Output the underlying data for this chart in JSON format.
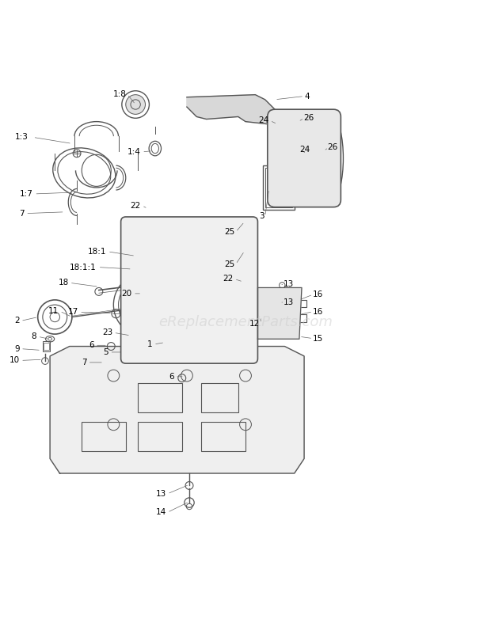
{
  "title": "",
  "bg_color": "#ffffff",
  "line_color": "#555555",
  "label_color": "#000000",
  "watermark": "eReplacementParts.com",
  "watermark_color": "#cccccc",
  "fig_width": 6.2,
  "fig_height": 8.01,
  "dpi": 100
}
